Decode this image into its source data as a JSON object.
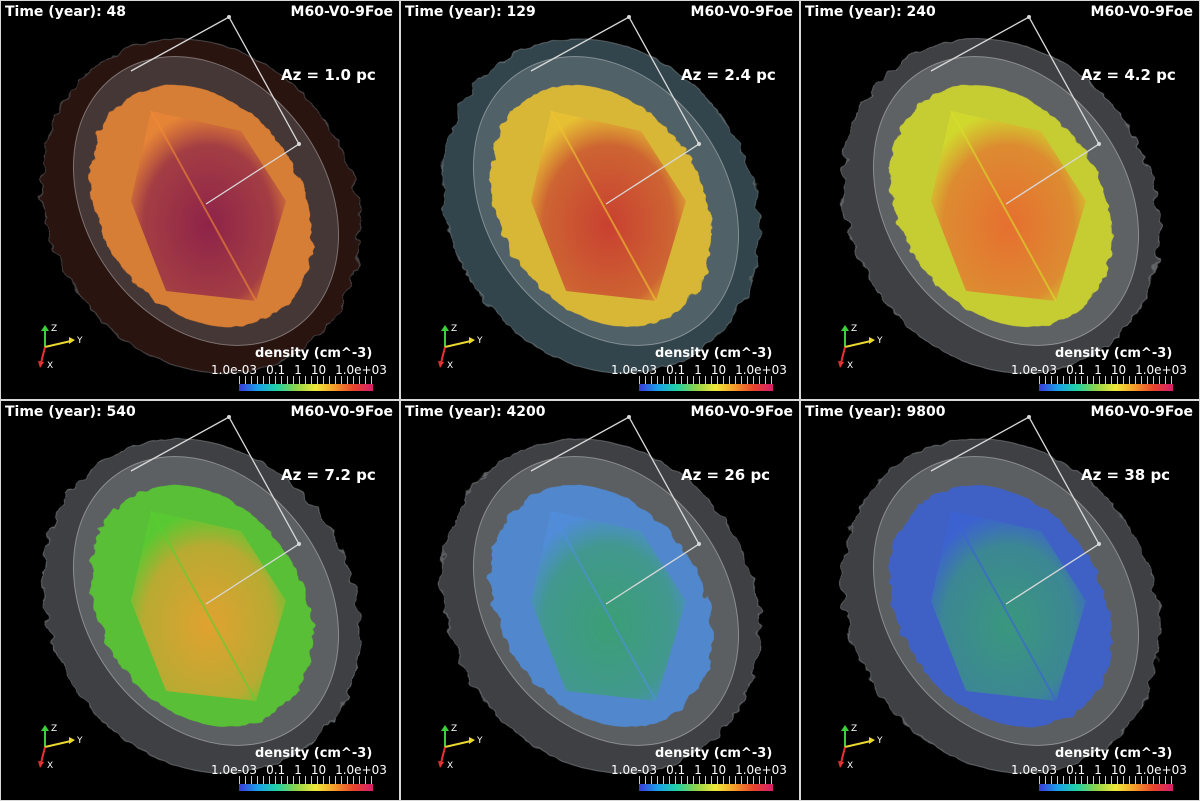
{
  "panels": [
    {
      "time_label": "Time (year): 48",
      "model": "M60-V0-9Foe",
      "az": "Az = 1.0 pc",
      "outer": "#5a2a22",
      "shell": "#f08a35",
      "core": "#8a1e4a",
      "halo": "#9aa0a4"
    },
    {
      "time_label": "Time (year): 129",
      "model": "M60-V0-9Foe",
      "az": "Az = 2.4 pc",
      "outer": "#6e9aa8",
      "shell": "#f0c530",
      "core": "#c83a30",
      "halo": "#b0b6ba"
    },
    {
      "time_label": "Time (year): 240",
      "model": "M60-V0-9Foe",
      "az": "Az = 4.2 pc",
      "outer": "#8a8f95",
      "shell": "#d8e02a",
      "core": "#e86a30",
      "halo": "#c2c6ca"
    },
    {
      "time_label": "Time (year): 540",
      "model": "M60-V0-9Foe",
      "az": "Az = 7.2 pc",
      "outer": "#8a8f95",
      "shell": "#58d030",
      "core": "#e8a030",
      "halo": "#bcc0c4"
    },
    {
      "time_label": "Time (year): 4200",
      "model": "M60-V0-9Foe",
      "az": "Az = 26 pc",
      "outer": "#8a8f95",
      "shell": "#4f8fe0",
      "core": "#3aa070",
      "halo": "#b8bcc0"
    },
    {
      "time_label": "Time (year): 9800",
      "model": "M60-V0-9Foe",
      "az": "Az = 38 pc",
      "outer": "#8a8f95",
      "shell": "#3a62d8",
      "core": "#3a9a7a",
      "halo": "#b8bcc0"
    }
  ],
  "colorbar": {
    "title": "density (cm^-3)",
    "ticks": [
      "1.0e-03",
      "0.1",
      "1",
      "10",
      "1.0e+03"
    ]
  },
  "axes_labels": {
    "z": "Z",
    "y": "Y",
    "x": "X"
  }
}
